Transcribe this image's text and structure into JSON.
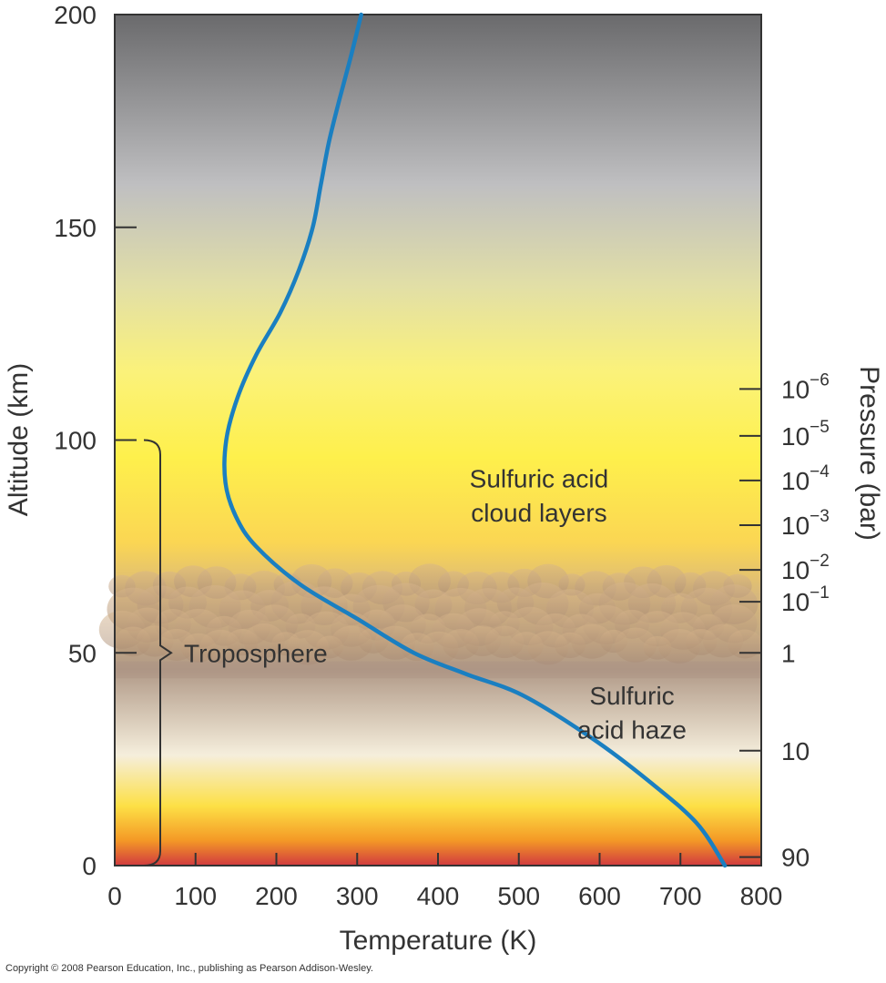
{
  "chart_data": {
    "type": "line",
    "xlabel": "Temperature (K)",
    "ylabel": "Altitude (km)",
    "y2label": "Pressure (bar)",
    "xlim": [
      0,
      800
    ],
    "ylim": [
      0,
      200
    ],
    "x_ticks": [
      0,
      100,
      200,
      300,
      400,
      500,
      600,
      700,
      800
    ],
    "y_ticks": [
      0,
      50,
      100,
      150,
      200
    ],
    "pressure_ticks": [
      {
        "base": "10",
        "exp": "−6",
        "altitude": 112
      },
      {
        "base": "10",
        "exp": "−5",
        "altitude": 101
      },
      {
        "base": "10",
        "exp": "−4",
        "altitude": 90.5
      },
      {
        "base": "10",
        "exp": "−3",
        "altitude": 80
      },
      {
        "base": "10",
        "exp": "−2",
        "altitude": 69.5
      },
      {
        "base": "10",
        "exp": "−1",
        "altitude": 62
      },
      {
        "base": "1",
        "exp": "",
        "altitude": 50
      },
      {
        "base": "10",
        "exp": "",
        "altitude": 27
      },
      {
        "base": "90",
        "exp": "",
        "altitude": 2
      }
    ],
    "series": [
      {
        "color": "#1a7fc1",
        "points": [
          [
            755,
            0
          ],
          [
            720,
            10
          ],
          [
            660,
            20
          ],
          [
            590,
            30
          ],
          [
            505,
            40
          ],
          [
            435,
            45
          ],
          [
            370,
            50
          ],
          [
            300,
            58
          ],
          [
            230,
            66
          ],
          [
            175,
            75
          ],
          [
            150,
            82
          ],
          [
            137,
            90
          ],
          [
            138,
            100
          ],
          [
            152,
            110
          ],
          [
            175,
            120
          ],
          [
            205,
            130
          ],
          [
            228,
            140
          ],
          [
            245,
            150
          ],
          [
            255,
            160
          ],
          [
            265,
            170
          ],
          [
            278,
            180
          ],
          [
            292,
            190
          ],
          [
            305,
            200
          ]
        ]
      }
    ],
    "annotations": [
      {
        "text": "Sulfuric acid",
        "T": 525,
        "alt": 91
      },
      {
        "text": "cloud layers",
        "T": 525,
        "alt": 83
      },
      {
        "text": "Sulfuric",
        "T": 640,
        "alt": 40
      },
      {
        "text": "acid haze",
        "T": 640,
        "alt": 32
      },
      {
        "text": "Troposphere",
        "T": 190,
        "alt": 50
      }
    ],
    "troposphere_range": [
      0,
      100
    ],
    "grid": false
  },
  "copyright": "Copyright © 2008 Pearson Education, Inc., publishing as Pearson Addison-Wesley."
}
